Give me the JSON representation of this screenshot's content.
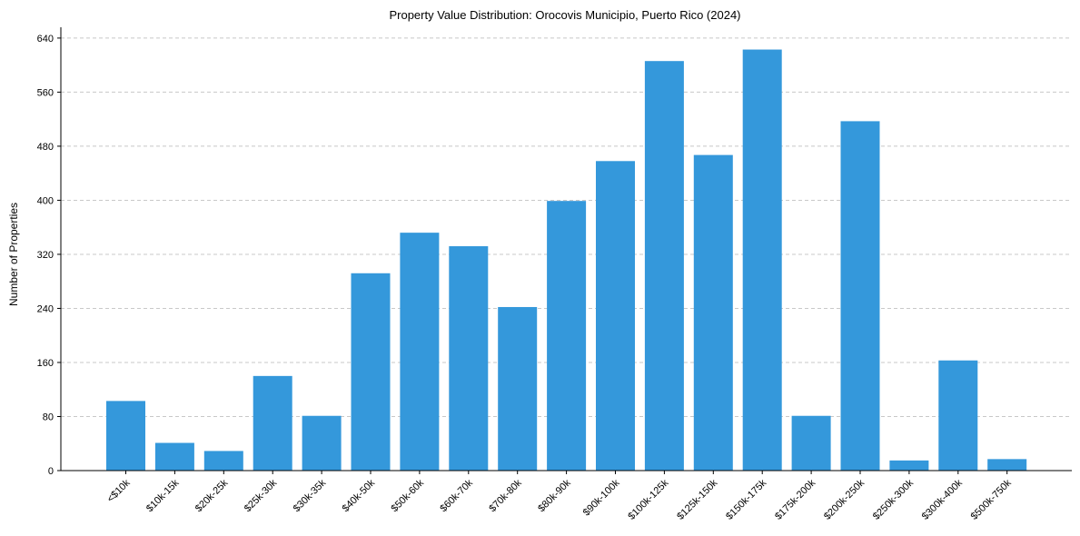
{
  "chart_data": {
    "type": "bar",
    "title": "Property Value Distribution: Orocovis Municipio, Puerto Rico (2024)",
    "xlabel": "",
    "ylabel": "Number of Properties",
    "ylim": [
      0,
      656
    ],
    "yticks": [
      0,
      80,
      160,
      240,
      320,
      400,
      480,
      560,
      640
    ],
    "grid": "y",
    "bar_color": "#3498db",
    "categories": [
      "<$10k",
      "$10k-15k",
      "$20k-25k",
      "$25k-30k",
      "$30k-35k",
      "$40k-50k",
      "$50k-60k",
      "$60k-70k",
      "$70k-80k",
      "$80k-90k",
      "$90k-100k",
      "$100k-125k",
      "$125k-150k",
      "$150k-175k",
      "$175k-200k",
      "$200k-250k",
      "$250k-300k",
      "$300k-400k",
      "$500k-750k"
    ],
    "values": [
      103,
      41,
      29,
      140,
      81,
      292,
      352,
      332,
      242,
      399,
      458,
      606,
      467,
      623,
      81,
      517,
      15,
      163,
      17
    ]
  }
}
